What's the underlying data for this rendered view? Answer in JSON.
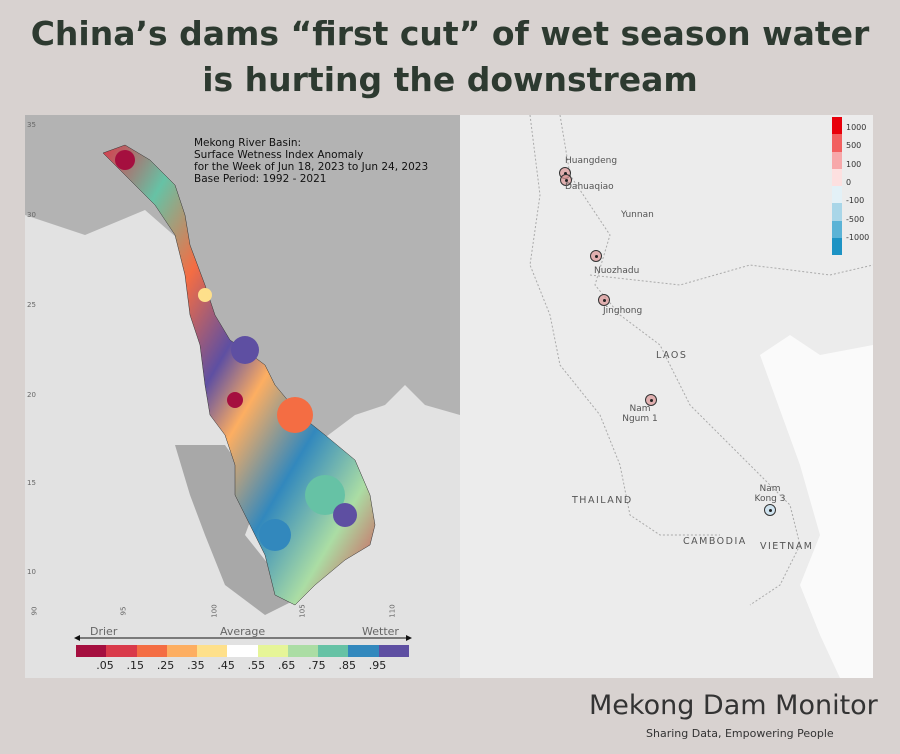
{
  "title": {
    "line1": "China’s dams “first cut” of wet season water",
    "line2": "is hurting the downstream"
  },
  "left_map": {
    "text": [
      "Mekong River Basin:",
      "Surface Wetness Index Anomaly",
      "for the Week of Jun 18, 2023 to Jun 24, 2023",
      "Base Period: 1992 - 2021"
    ],
    "lat_ticks": [
      "35",
      "30",
      "25",
      "20",
      "15",
      "10"
    ],
    "lon_ticks": [
      "90",
      "95",
      "100",
      "105",
      "110"
    ],
    "scale": {
      "left": "Drier",
      "center": "Average",
      "right": "Wetter"
    },
    "colorbar_colors": [
      "#a50f3f",
      "#d93a4a",
      "#f46d43",
      "#fdae61",
      "#fee08b",
      "#ffffff",
      "#e6f598",
      "#abdda4",
      "#66c2a5",
      "#3288bd",
      "#5e4fa2"
    ],
    "colorbar_labels": [
      ".05",
      ".15",
      ".25",
      ".35",
      ".45",
      ".55",
      ".65",
      ".75",
      ".85",
      ".95"
    ]
  },
  "right_map": {
    "dams": [
      {
        "name": "Huangdeng"
      },
      {
        "name": "Dahuaqiao"
      },
      {
        "name": "Nuozhadu"
      },
      {
        "name": "Jinghong"
      },
      {
        "name": "Nam Ngum 1"
      },
      {
        "name": "Nam Kong 3"
      }
    ],
    "places": [
      "Yunnan"
    ],
    "countries": [
      "LAOS",
      "THAILAND",
      "CAMBODIA",
      "VIETNAM"
    ],
    "legend": {
      "labels": [
        "1000",
        "500",
        "100",
        "0",
        "-100",
        "-500",
        "-1000"
      ],
      "colors": [
        "#e8000b",
        "#f26060",
        "#f7a8aa",
        "#fde0e0",
        "#e3f1f7",
        "#a9d6e8",
        "#5bb3d6",
        "#1d93c4"
      ]
    }
  },
  "footer": {
    "brand": "Mekong Dam Monitor",
    "tagline": "Sharing Data, Empowering People"
  }
}
